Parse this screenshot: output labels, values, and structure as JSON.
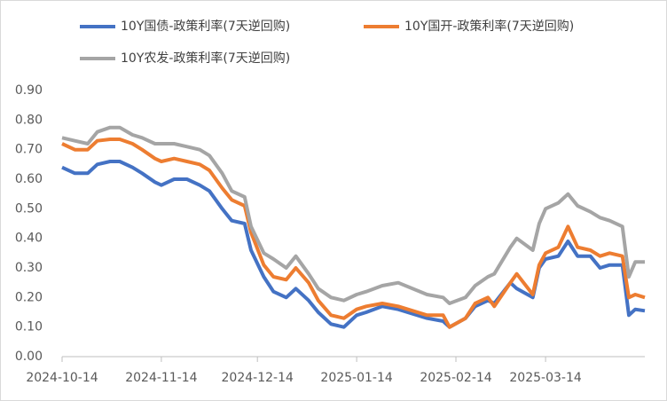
{
  "chart_data": {
    "type": "line",
    "x": [
      "2024-10-14",
      "2024-10-18",
      "2024-10-22",
      "2024-10-25",
      "2024-10-29",
      "2024-11-01",
      "2024-11-05",
      "2024-11-08",
      "2024-11-12",
      "2024-11-14",
      "2024-11-18",
      "2024-11-22",
      "2024-11-26",
      "2024-11-29",
      "2024-12-03",
      "2024-12-06",
      "2024-12-10",
      "2024-12-12",
      "2024-12-16",
      "2024-12-19",
      "2024-12-23",
      "2024-12-26",
      "2024-12-30",
      "2025-01-02",
      "2025-01-06",
      "2025-01-10",
      "2025-01-14",
      "2025-01-17",
      "2025-01-22",
      "2025-01-27",
      "2025-02-05",
      "2025-02-10",
      "2025-02-12",
      "2025-02-17",
      "2025-02-20",
      "2025-02-24",
      "2025-02-26",
      "2025-03-03",
      "2025-03-05",
      "2025-03-10",
      "2025-03-12",
      "2025-03-14",
      "2025-03-18",
      "2025-03-21",
      "2025-03-24",
      "2025-03-28",
      "2025-03-31",
      "2025-04-03",
      "2025-04-07",
      "2025-04-09",
      "2025-04-11",
      "2025-04-14"
    ],
    "series": [
      {
        "name": "10Y国债-政策利率(7天逆回购)",
        "color": "#4472c4",
        "values": [
          0.64,
          0.62,
          0.62,
          0.65,
          0.66,
          0.66,
          0.64,
          0.62,
          0.59,
          0.58,
          0.6,
          0.6,
          0.58,
          0.56,
          0.5,
          0.46,
          0.45,
          0.36,
          0.27,
          0.22,
          0.2,
          0.23,
          0.19,
          0.15,
          0.11,
          0.1,
          0.14,
          0.15,
          0.17,
          0.16,
          0.13,
          0.12,
          0.1,
          0.13,
          0.17,
          0.19,
          0.18,
          0.25,
          0.23,
          0.2,
          0.3,
          0.33,
          0.34,
          0.39,
          0.34,
          0.34,
          0.3,
          0.31,
          0.31,
          0.14,
          0.16,
          0.155
        ]
      },
      {
        "name": "10Y国开-政策利率(7天逆回购)",
        "color": "#ed7d31",
        "values": [
          0.72,
          0.7,
          0.7,
          0.73,
          0.735,
          0.735,
          0.72,
          0.7,
          0.67,
          0.66,
          0.67,
          0.66,
          0.65,
          0.63,
          0.57,
          0.53,
          0.51,
          0.42,
          0.31,
          0.27,
          0.26,
          0.3,
          0.25,
          0.19,
          0.14,
          0.13,
          0.16,
          0.17,
          0.18,
          0.17,
          0.14,
          0.14,
          0.1,
          0.13,
          0.18,
          0.2,
          0.17,
          0.25,
          0.28,
          0.21,
          0.31,
          0.35,
          0.37,
          0.44,
          0.37,
          0.36,
          0.34,
          0.35,
          0.34,
          0.2,
          0.21,
          0.2
        ]
      },
      {
        "name": "10Y农发-政策利率(7天逆回购)",
        "color": "#a5a5a5",
        "values": [
          0.74,
          0.73,
          0.72,
          0.76,
          0.775,
          0.775,
          0.75,
          0.74,
          0.72,
          0.72,
          0.72,
          0.71,
          0.7,
          0.68,
          0.62,
          0.56,
          0.54,
          0.44,
          0.35,
          0.33,
          0.3,
          0.34,
          0.28,
          0.23,
          0.2,
          0.19,
          0.21,
          0.22,
          0.24,
          0.25,
          0.21,
          0.2,
          0.18,
          0.2,
          0.24,
          0.27,
          0.28,
          0.37,
          0.4,
          0.36,
          0.45,
          0.5,
          0.52,
          0.55,
          0.51,
          0.49,
          0.47,
          0.46,
          0.44,
          0.27,
          0.32,
          0.32
        ]
      }
    ],
    "xlim": [
      "2024-10-14",
      "2025-04-14"
    ],
    "xticks": [
      "2024-10-14",
      "2024-11-14",
      "2024-12-14",
      "2025-01-14",
      "2025-02-14",
      "2025-03-14"
    ],
    "ylim": [
      0,
      0.9
    ],
    "yticks": [
      {
        "value": 0,
        "label": "0.00"
      },
      {
        "value": 0.1,
        "label": "0.10"
      },
      {
        "value": 0.2,
        "label": "0.20"
      },
      {
        "value": 0.3,
        "label": "0.30"
      },
      {
        "value": 0.4,
        "label": "0.40"
      },
      {
        "value": 0.5,
        "label": "0.50"
      },
      {
        "value": 0.6,
        "label": "0.60"
      },
      {
        "value": 0.7,
        "label": "0.70"
      },
      {
        "value": 0.8,
        "label": "0.80"
      },
      {
        "value": 0.9,
        "label": "0.90"
      }
    ]
  }
}
